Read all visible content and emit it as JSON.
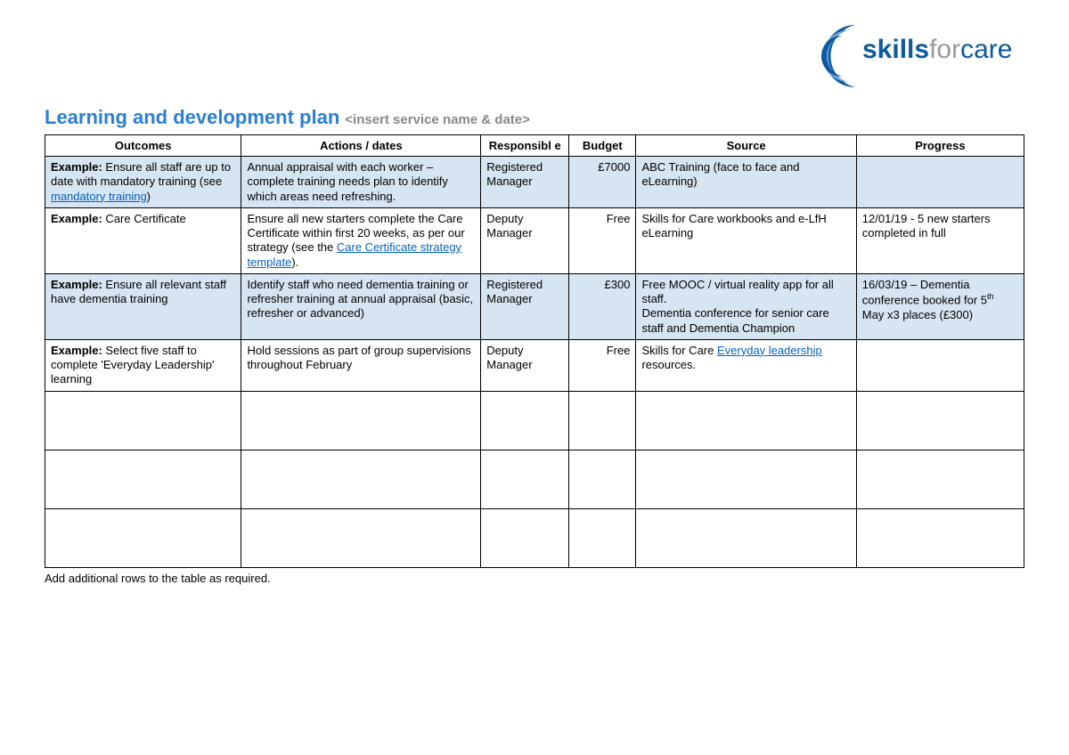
{
  "logo": {
    "text_part1": "skills",
    "text_part2": "for",
    "text_part3": "care",
    "color_dark": "#0a5aa0",
    "color_light": "#6ba3d6"
  },
  "title": "Learning and development plan",
  "subtitle": "<insert service name & date>",
  "columns": [
    "Outcomes",
    "Actions / dates",
    "Responsibl e",
    "Budget",
    "Source",
    "Progress"
  ],
  "colors": {
    "title": "#2b7fd4",
    "subtitle": "#888888",
    "row_alt_bg": "#d7e4f1",
    "link": "#0563c1",
    "border": "#000000",
    "text": "#000000"
  },
  "rows": [
    {
      "alt": true,
      "outcomes_prefix": "Example:",
      "outcomes_text_before": " Ensure all staff are up to date with mandatory training (see ",
      "outcomes_link": "mandatory training",
      "outcomes_text_after": ")",
      "actions": "Annual appraisal with each worker – complete training needs plan to identify which areas need refreshing.",
      "responsible": "Registered Manager",
      "budget": "£7000",
      "source_plain": "ABC Training (face to face and eLearning)",
      "progress": ""
    },
    {
      "alt": false,
      "outcomes_prefix": "Example:",
      "outcomes_text_before": " Care Certificate",
      "actions_before": "Ensure all new starters complete the Care Certificate within first 20 weeks, as per our strategy (see the ",
      "actions_link": "Care Certificate strategy template",
      "actions_after": ").",
      "responsible": "Deputy Manager",
      "budget": "Free",
      "source_plain": "Skills for Care workbooks and e-LfH eLearning",
      "progress": "12/01/19 - 5 new starters completed in full"
    },
    {
      "alt": true,
      "outcomes_prefix": "Example:",
      "outcomes_text_before": " Ensure all relevant staff have dementia training",
      "actions": "Identify staff who need dementia training or refresher training at annual appraisal (basic, refresher or advanced)",
      "responsible": "Registered Manager",
      "budget": "£300",
      "source_plain": "Free MOOC / virtual reality app for all staff.\nDementia conference for senior care staff and Dementia Champion",
      "progress_before": "16/03/19 – Dementia conference booked for 5",
      "progress_sup": "th",
      "progress_after": " May x3 places (£300)"
    },
    {
      "alt": false,
      "outcomes_prefix": "Example:",
      "outcomes_text_before": " Select five staff to complete 'Everyday Leadership' learning",
      "actions": "Hold sessions as part of group supervisions throughout February",
      "responsible": "Deputy Manager",
      "budget": "Free",
      "source_before": "Skills for Care ",
      "source_link": "Everyday leadership",
      "source_after": " resources.",
      "progress": ""
    }
  ],
  "empty_rows": 3,
  "footer_note": "Add additional rows to the table as required."
}
